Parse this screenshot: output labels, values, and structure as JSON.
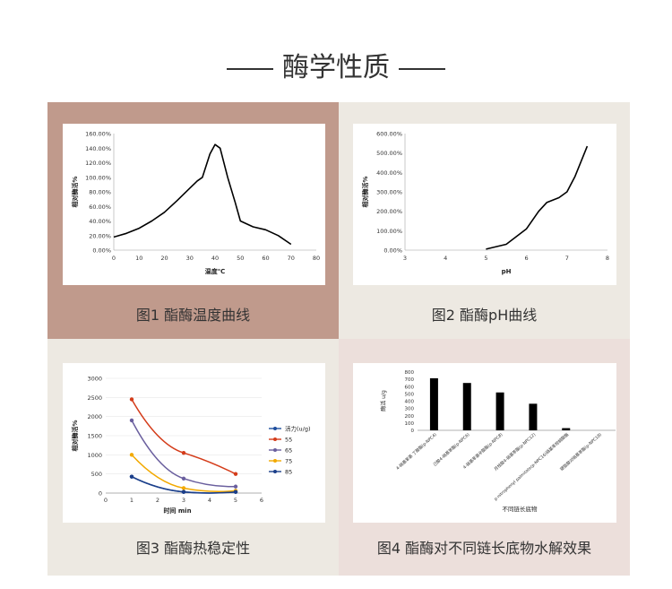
{
  "header": {
    "title": "酶学性质"
  },
  "colors": {
    "panel1": "#c09a8c",
    "panel2": "#ede9e2",
    "panel3": "#ede9e2",
    "panel4": "#ecdfdb",
    "line": "#000000"
  },
  "captions": [
    "图1  酯酶温度曲线",
    "图2  酯酶pH曲线",
    "图3  酯酶热稳定性",
    "图4  酯酶对不同链长底物水解效果"
  ],
  "chart_data": [
    {
      "type": "line",
      "ylabel": "相对酶活%",
      "xlabel": "温度℃",
      "xlim": [
        0,
        80
      ],
      "ylim": [
        0,
        160
      ],
      "x_ticks": [
        "0",
        "10",
        "20",
        "30",
        "40",
        "50",
        "60",
        "70",
        "80"
      ],
      "y_ticks": [
        "0.00%",
        "20.00%",
        "40.00%",
        "60.00%",
        "80.00%",
        "100.00%",
        "120.00%",
        "140.00%",
        "160.00%"
      ],
      "series": [
        {
          "x": [
            0,
            5,
            10,
            15,
            20,
            25,
            30,
            33,
            35,
            38,
            40,
            42,
            45,
            48,
            50,
            55,
            60,
            65,
            70
          ],
          "values": [
            18,
            23,
            30,
            40,
            52,
            68,
            85,
            95,
            100,
            132,
            145,
            140,
            100,
            65,
            40,
            32,
            28,
            20,
            8
          ]
        }
      ]
    },
    {
      "type": "line",
      "ylabel": "相对酶活%",
      "xlabel": "pH",
      "xlim": [
        3,
        8
      ],
      "ylim": [
        0,
        600
      ],
      "x_ticks": [
        "3",
        "4",
        "5",
        "6",
        "7",
        "8"
      ],
      "y_ticks": [
        "0.00%",
        "100.00%",
        "200.00%",
        "300.00%",
        "400.00%",
        "500.00%",
        "600.00%"
      ],
      "series": [
        {
          "x": [
            5,
            5.5,
            6,
            6.3,
            6.5,
            6.8,
            7,
            7.2,
            7.5
          ],
          "values": [
            5,
            30,
            110,
            200,
            245,
            270,
            300,
            380,
            535
          ]
        }
      ]
    },
    {
      "type": "line",
      "ylabel": "相对酶活%",
      "xlabel": "时间 min",
      "xlim": [
        0,
        6
      ],
      "ylim": [
        0,
        3000
      ],
      "x_ticks": [
        "0",
        "1",
        "2",
        "3",
        "4",
        "5",
        "6"
      ],
      "y_ticks": [
        "0",
        "500",
        "1000",
        "1500",
        "2000",
        "2500",
        "3000"
      ],
      "x": [
        1,
        3,
        5
      ],
      "series": [
        {
          "name": "活力(u/g)",
          "color": "#1f4e9e",
          "values": [
            430,
            30,
            30
          ]
        },
        {
          "name": "55",
          "color": "#d43c1a",
          "values": [
            2450,
            1050,
            500
          ]
        },
        {
          "name": "65",
          "color": "#6a5f9e",
          "values": [
            1900,
            380,
            170
          ]
        },
        {
          "name": "75",
          "color": "#f2a900",
          "values": [
            1000,
            130,
            60
          ]
        },
        {
          "name": "85",
          "color": "#1c3f8a",
          "values": [
            430,
            30,
            30
          ]
        }
      ]
    },
    {
      "type": "bar",
      "ylabel": "酶活 u/g",
      "xlabel": "不同链长底物",
      "ylim": [
        0,
        800
      ],
      "y_ticks": [
        "0",
        "100",
        "200",
        "300",
        "400",
        "500",
        "600",
        "700",
        "800"
      ],
      "categories": [
        "4-硝基苯基 丁酸酯(p-NPC4)",
        "己酸4-硝基苯酯(p-NPC6)",
        "4-硝基苯基辛酸酯(p-NPC8)",
        "月桂酸4-硝基苯酯(p-NPC12)",
        "p-nitrophenyl palmitate(p-NPC16)硝基苯棕榈酸酯",
        "硬脂酸对硝基苯酯(p-NPC18)"
      ],
      "values": [
        715,
        650,
        520,
        365,
        30,
        0
      ]
    }
  ]
}
